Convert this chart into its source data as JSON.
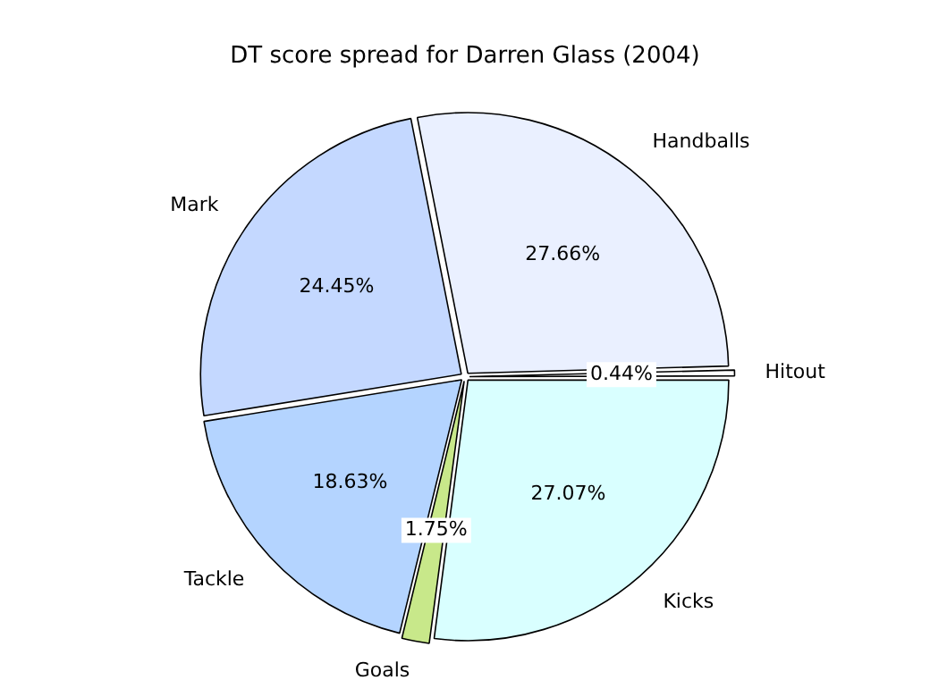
{
  "chart_data": {
    "type": "pie",
    "title": "DT score spread for Darren Glass (2004)",
    "categories": [
      "Kicks",
      "Goals",
      "Tackle",
      "Mark",
      "Handballs",
      "Hitout"
    ],
    "values": [
      27.07,
      1.75,
      18.63,
      24.45,
      27.66,
      0.44
    ],
    "colors": [
      "#d9ffff",
      "#c8e88a",
      "#b4d4ff",
      "#c4d8ff",
      "#eaf0ff",
      "#ffffff"
    ],
    "value_labels": [
      "27.07%",
      "1.75%",
      "18.63%",
      "24.45%",
      "27.66%",
      "0.44%"
    ],
    "legend": false
  }
}
